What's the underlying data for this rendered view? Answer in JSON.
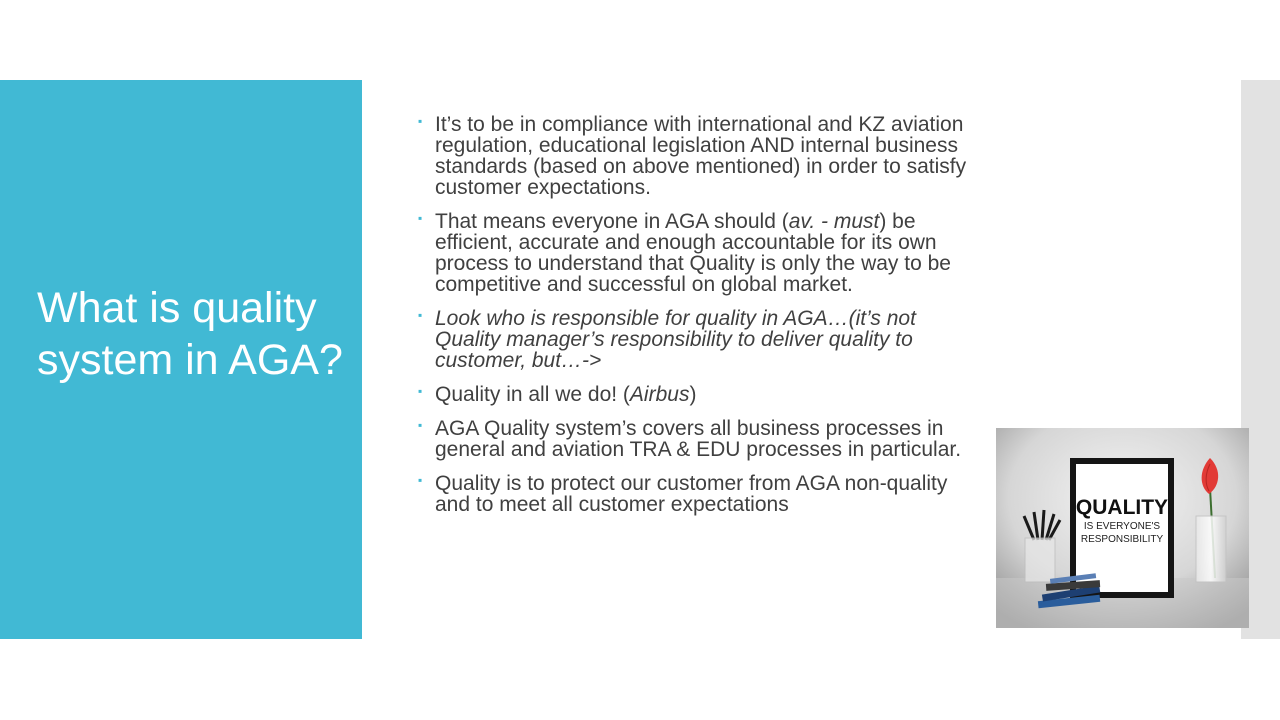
{
  "slide": {
    "title": "What is quality system in AGA?"
  },
  "bullets": [
    {
      "segments": [
        {
          "t": "It’s to be in compliance with international and KZ aviation regulation, educational legislation AND internal business standards (based on above mentioned) in order to satisfy customer expectations."
        }
      ]
    },
    {
      "segments": [
        {
          "t": "That means everyone in AGA should ("
        },
        {
          "t": "av. - must",
          "i": true
        },
        {
          "t": ") be efficient, accurate and enough accountable for its own process to understand that Quality is only the way to be competitive and successful on global market."
        }
      ]
    },
    {
      "segments": [
        {
          "t": "Look who is responsible for quality in AGA…(it’s not Quality manager’s responsibility to deliver quality to customer, but…->",
          "i": true
        }
      ]
    },
    {
      "segments": [
        {
          "t": "Quality in all we do! ("
        },
        {
          "t": "Airbus",
          "i": true
        },
        {
          "t": ")"
        }
      ]
    },
    {
      "segments": [
        {
          "t": "AGA Quality system’s covers all business processes in general and aviation TRA & EDU processes in particular."
        }
      ]
    },
    {
      "segments": [
        {
          "t": "Quality is to protect our customer from AGA non-quality and to meet all customer expectations"
        }
      ]
    }
  ],
  "photo": {
    "sign_line1": "QUALITY",
    "sign_line2": "IS EVERYONE'S",
    "sign_line3": "RESPONSIBILITY"
  },
  "colors": {
    "accent": "#41b9d4",
    "text": "#404040",
    "sidebar": "#e2e2e2"
  }
}
